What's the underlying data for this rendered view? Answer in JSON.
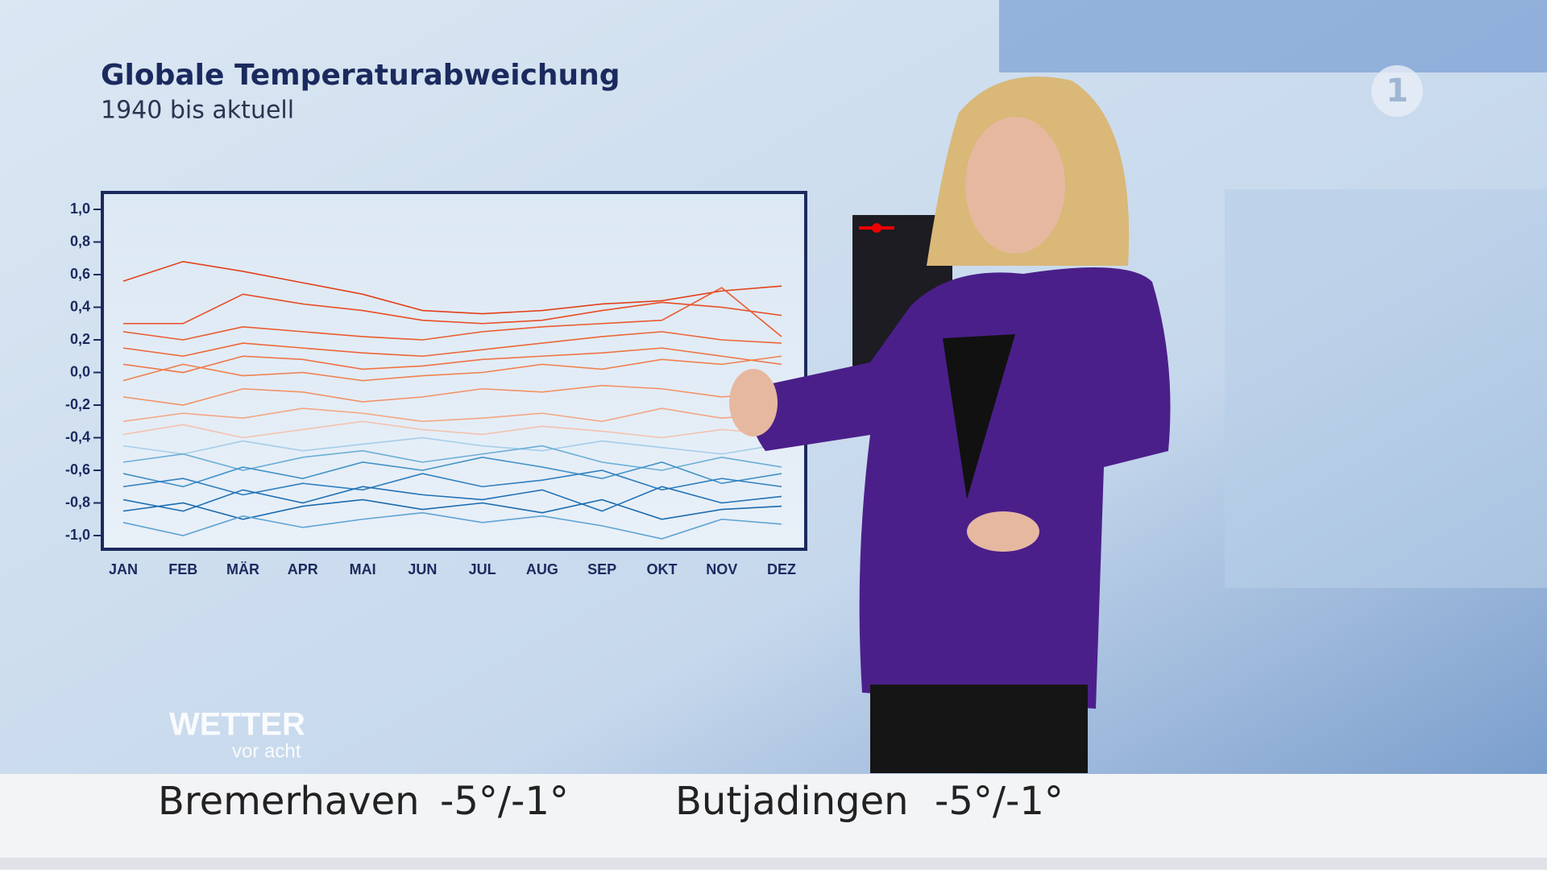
{
  "chart_data": {
    "type": "line",
    "title": "Globale Temperaturabweichung",
    "subtitle": "1940 bis aktuell",
    "categories": [
      "JAN",
      "FEB",
      "MÄR",
      "APR",
      "MAI",
      "JUN",
      "JUL",
      "AUG",
      "SEP",
      "OKT",
      "NOV",
      "DEZ"
    ],
    "ylim": [
      -1.0,
      1.0
    ],
    "yticks": [
      {
        "value": 1.0,
        "label": "1,0"
      },
      {
        "value": 0.8,
        "label": "0,8"
      },
      {
        "value": 0.6,
        "label": "0,6"
      },
      {
        "value": 0.4,
        "label": "0,4"
      },
      {
        "value": 0.2,
        "label": "0,2"
      },
      {
        "value": 0.0,
        "label": "0,0"
      },
      {
        "value": -0.2,
        "label": "-0,2"
      },
      {
        "value": -0.4,
        "label": "-0,4"
      },
      {
        "value": -0.6,
        "label": "-0,6"
      },
      {
        "value": -0.8,
        "label": "-0,8"
      },
      {
        "value": -1.0,
        "label": "-1,0"
      }
    ],
    "series": [
      {
        "color": "#e3401a",
        "values": [
          0.56,
          0.68,
          0.62,
          0.55,
          0.48,
          0.38,
          0.36,
          0.38,
          0.42,
          0.44,
          0.5,
          0.53
        ]
      },
      {
        "color": "#e84d24",
        "values": [
          0.3,
          0.3,
          0.48,
          0.42,
          0.38,
          0.32,
          0.3,
          0.32,
          0.38,
          0.43,
          0.4,
          0.35
        ]
      },
      {
        "color": "#ea5a2e",
        "values": [
          0.25,
          0.2,
          0.28,
          0.25,
          0.22,
          0.2,
          0.25,
          0.28,
          0.3,
          0.32,
          0.52,
          0.22
        ]
      },
      {
        "color": "#ec6638",
        "values": [
          0.15,
          0.1,
          0.18,
          0.15,
          0.12,
          0.1,
          0.14,
          0.18,
          0.22,
          0.25,
          0.2,
          0.18
        ]
      },
      {
        "color": "#ee7344",
        "values": [
          0.05,
          0.0,
          0.1,
          0.08,
          0.02,
          0.04,
          0.08,
          0.1,
          0.12,
          0.15,
          0.1,
          0.05
        ]
      },
      {
        "color": "#f08050",
        "values": [
          -0.05,
          0.05,
          -0.02,
          0.0,
          -0.05,
          -0.02,
          0.0,
          0.05,
          0.02,
          0.08,
          0.05,
          0.1
        ]
      },
      {
        "color": "#f29166",
        "values": [
          -0.15,
          -0.2,
          -0.1,
          -0.12,
          -0.18,
          -0.15,
          -0.1,
          -0.12,
          -0.08,
          -0.1,
          -0.15,
          -0.12
        ]
      },
      {
        "color": "#f4a582",
        "values": [
          -0.3,
          -0.25,
          -0.28,
          -0.22,
          -0.25,
          -0.3,
          -0.28,
          -0.25,
          -0.3,
          -0.22,
          -0.28,
          -0.25
        ]
      },
      {
        "color": "#f3c2ad",
        "values": [
          -0.38,
          -0.32,
          -0.4,
          -0.35,
          -0.3,
          -0.35,
          -0.38,
          -0.33,
          -0.36,
          -0.4,
          -0.35,
          -0.38
        ]
      },
      {
        "color": "#a6cde8",
        "values": [
          -0.45,
          -0.5,
          -0.42,
          -0.48,
          -0.44,
          -0.4,
          -0.45,
          -0.48,
          -0.42,
          -0.46,
          -0.5,
          -0.44
        ]
      },
      {
        "color": "#6aaed6",
        "values": [
          -0.55,
          -0.5,
          -0.6,
          -0.52,
          -0.48,
          -0.55,
          -0.5,
          -0.45,
          -0.55,
          -0.6,
          -0.52,
          -0.58
        ]
      },
      {
        "color": "#4292c6",
        "values": [
          -0.62,
          -0.7,
          -0.58,
          -0.65,
          -0.55,
          -0.6,
          -0.52,
          -0.58,
          -0.65,
          -0.55,
          -0.68,
          -0.62
        ]
      },
      {
        "color": "#2f7fbf",
        "values": [
          -0.7,
          -0.65,
          -0.75,
          -0.68,
          -0.72,
          -0.62,
          -0.7,
          -0.66,
          -0.6,
          -0.72,
          -0.65,
          -0.7
        ]
      },
      {
        "color": "#2171b5",
        "values": [
          -0.78,
          -0.85,
          -0.72,
          -0.8,
          -0.7,
          -0.75,
          -0.78,
          -0.72,
          -0.85,
          -0.7,
          -0.8,
          -0.76
        ]
      },
      {
        "color": "#1a6aae",
        "values": [
          -0.85,
          -0.8,
          -0.9,
          -0.82,
          -0.78,
          -0.84,
          -0.8,
          -0.86,
          -0.78,
          -0.9,
          -0.84,
          -0.82
        ]
      },
      {
        "color": "#5fa3d4",
        "values": [
          -0.92,
          -1.0,
          -0.88,
          -0.95,
          -0.9,
          -0.86,
          -0.92,
          -0.88,
          -0.94,
          -1.02,
          -0.9,
          -0.93
        ]
      }
    ]
  },
  "logo": {
    "title": "WETTER",
    "subtitle": "vor acht",
    "channel": "1"
  },
  "ticker": [
    {
      "city": "Bremerhaven",
      "temps": "-5°/-1°"
    },
    {
      "city": "Butjadingen",
      "temps": "-5°/-1°"
    }
  ]
}
